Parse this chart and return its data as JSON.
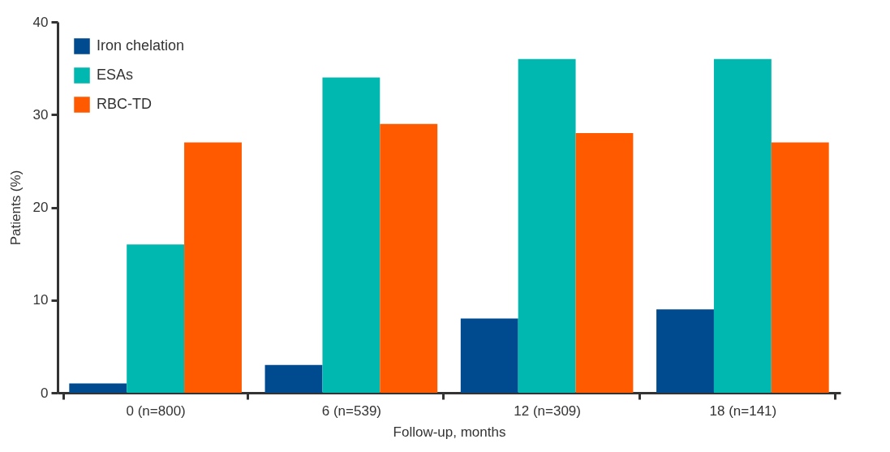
{
  "chart_data": {
    "type": "bar",
    "xlabel": "Follow-up, months",
    "ylabel": "Patients (%)",
    "categories": [
      "0 (n=800)",
      "6 (n=539)",
      "12 (n=309)",
      "18 (n=141)"
    ],
    "series": [
      {
        "name": "Iron chelation",
        "color": "#004a8f",
        "values": [
          1,
          3,
          8,
          9
        ]
      },
      {
        "name": "ESAs",
        "color": "#00b8b0",
        "values": [
          16,
          34,
          36,
          36
        ]
      },
      {
        "name": "RBC-TD",
        "color": "#ff5a00",
        "values": [
          27,
          29,
          28,
          27
        ]
      }
    ],
    "ylim": [
      0,
      40
    ],
    "yticks": [
      0,
      10,
      20,
      30,
      40
    ],
    "grid": false,
    "legend": "top left"
  }
}
